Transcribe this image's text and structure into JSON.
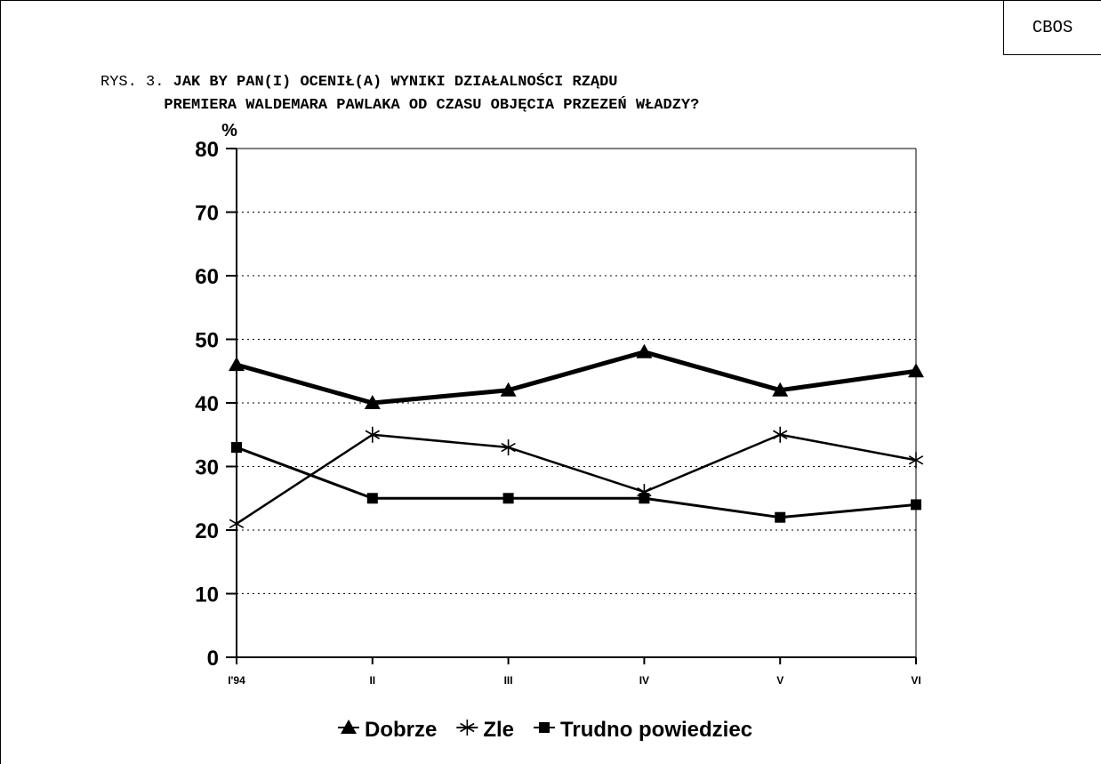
{
  "stamp": "CBOS",
  "title": {
    "prefix": "RYS. 3.",
    "line1": "JAK BY PAN(I) OCENIŁ(A) WYNIKI DZIAŁALNOŚCI RZĄDU",
    "line2": "PREMIERA WALDEMARA PAWLAKA OD CZASU OBJĘCIA PRZEZEŃ WŁADZY?"
  },
  "chart_data": {
    "type": "line",
    "ylabel": "%",
    "ylim": [
      0,
      80
    ],
    "yticks": [
      0,
      10,
      20,
      30,
      40,
      50,
      60,
      70,
      80
    ],
    "categories": [
      "I'94",
      "II",
      "III",
      "IV",
      "V",
      "VI"
    ],
    "grid": "horizontal-dotted",
    "legend_position": "bottom",
    "series": [
      {
        "name": "Dobrze",
        "marker": "triangle",
        "values": [
          46,
          40,
          42,
          48,
          42,
          45
        ]
      },
      {
        "name": "Zle",
        "marker": "asterisk",
        "values": [
          21,
          35,
          33,
          26,
          35,
          31
        ]
      },
      {
        "name": "Trudno powiedziec",
        "marker": "square",
        "values": [
          33,
          25,
          25,
          25,
          22,
          24
        ]
      }
    ]
  }
}
